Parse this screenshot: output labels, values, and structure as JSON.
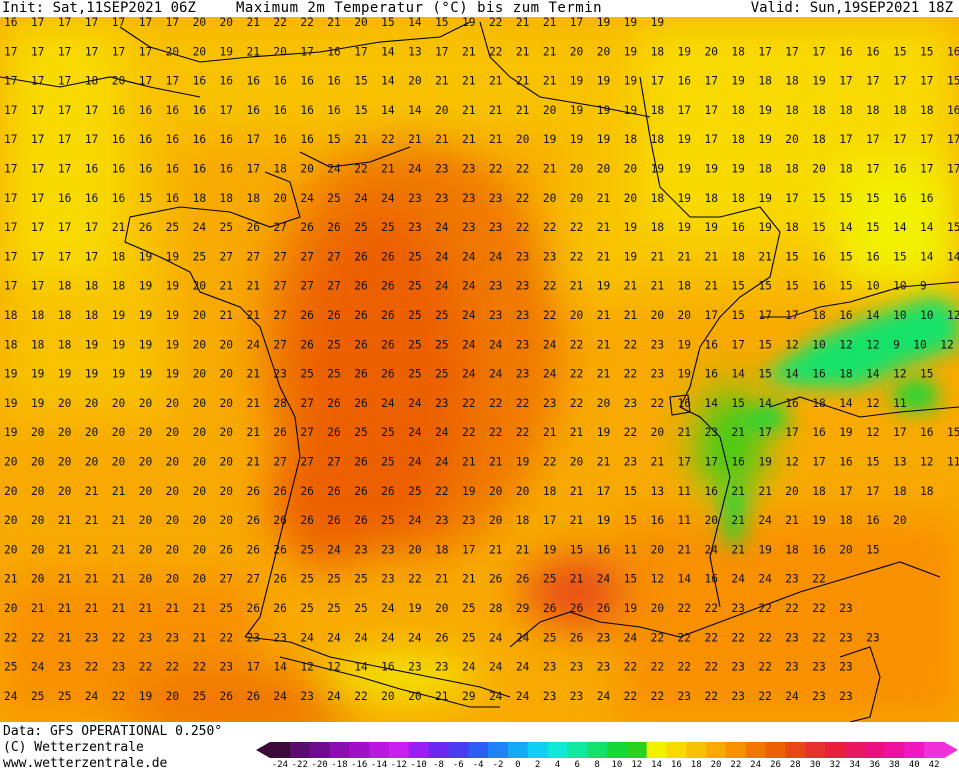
{
  "header": {
    "init": "Init: Sat,11SEP2021 06Z",
    "title": "Maximum 2m Temperatur (°C) bis zum Termin",
    "valid": "Valid: Sun,19SEP2021 18Z"
  },
  "footer": {
    "data_source": "Data: GFS OPERATIONAL 0.250°",
    "copyright": "(C) Wetterzentrale",
    "url": "www.wetterzentrale.de"
  },
  "legend": {
    "ticks": [
      "-24",
      "-22",
      "-20",
      "-18",
      "-16",
      "-14",
      "-12",
      "-10",
      "-8",
      "-6",
      "-4",
      "-2",
      "0",
      "2",
      "4",
      "6",
      "8",
      "10",
      "12",
      "14",
      "16",
      "18",
      "20",
      "22",
      "24",
      "26",
      "28",
      "30",
      "32",
      "34",
      "36",
      "38",
      "40",
      "42"
    ],
    "colors": [
      "#3b0a3b",
      "#5a0b6e",
      "#6e0c8c",
      "#8a0fb0",
      "#a010c8",
      "#b818e0",
      "#c81ff0",
      "#9a1ff5",
      "#6a28f0",
      "#4a3cf0",
      "#2f5cf2",
      "#1f82f5",
      "#13aaf6",
      "#10d0f2",
      "#10e8d8",
      "#10e8a0",
      "#12e26a",
      "#15d83a",
      "#2ad21e",
      "#f2f200",
      "#f8da00",
      "#f8c200",
      "#f8aa00",
      "#f89000",
      "#f07800",
      "#ec6000",
      "#e84818",
      "#e83030",
      "#e8203c",
      "#ea1860",
      "#ee1080",
      "#f010a0",
      "#f218c0",
      "#f030d8"
    ]
  },
  "map": {
    "grid_lines": [
      {
        "y": 1,
        "text": "16  17  17  17  17  17  17  20  20  21  22  22  21  20  15  14  15  19  22  21  21  17  19  19  19"
      },
      {
        "y": 2,
        "text": "17  17  17  17  17  17  20  20  19  21  20  17  16  17  14  13  17  21  22  21  21  20  20  19  18  19  20  18  17  17  17  16  16  15  15  16  15"
      },
      {
        "y": 3,
        "text": "17  17  17  18  20  17  17  16  16  16  16  16  16  15  14  20  21  21  21  21  21  19  19  19  17  16  17  19  18  18  19  17  17  17  17  15  13"
      },
      {
        "y": 4,
        "text": "17  17  17  17  16  16  16  16  17  16  16  16  16  15  14  14  20  21  21  21  20  19  19  19  18  17  17  18  19  18  18  18  18  18  18  16  16"
      },
      {
        "y": 5,
        "text": "17  17  17  17  16  16  16  16  16  17  16  16  15  21  22  21  21  21  21  20  19  19  19  18  18  19  17  18  19  20  18  17  17  17  17  17  16"
      },
      {
        "y": 6,
        "text": "17  17  17  16  16  16  16  16  16  17  18  20  24  22  21  24  23  23  22  22  21  20  20  20  19  19  19  19  18  18  20  18  17  16  17  17  16"
      },
      {
        "y": 7,
        "text": "17  17  16  16  16  15  16  18  18  18  20  24  25  24  24  23  23  23  23  22  20  20  21  20  18  19  18  18  19  17  15  15  15  16  16"
      },
      {
        "y": 8,
        "text": "17  17  17  17  21  26  25  24  25  26  27  26  26  25  25  23  24  23  23  22  22  22  21  19  18  19  19  16  19  18  15  14  15  14  14  15"
      },
      {
        "y": 9,
        "text": "17  17  17  17  18  19  19  25  27  27  27  27  27  26  26  25  24  24  24  23  23  22  21  19  21  21  21  18  21  15  16  15  16  15  14  14  14"
      },
      {
        "y": 10,
        "text": "17  17  18  18  18  19  19  20  21  21  27  27  27  26  26  25  24  24  23  23  22  21  19  21  21  18  21  15  15  15  16  15  10  10  9"
      },
      {
        "y": 11,
        "text": "18  18  18  18  19  19  19  20  21  21  27  26  26  26  26  25  25  24  23  23  22  20  21  21  20  20  17  15  17  17  18  16  14  10  10  12"
      },
      {
        "y": 12,
        "text": "18  18  18  19  19  19  19  20  20  24  27  26  25  26  26  25  25  24  24  23  24  22  21  22  23  19  16  17  15  12  10  12  12  9  10  12"
      },
      {
        "y": 13,
        "text": "19  19  19  19  19  19  19  20  20  21  23  25  25  26  26  25  25  24  24  23  24  22  21  22  23  19  16  14  15  14  16  18  14  12  15"
      },
      {
        "y": 14,
        "text": "19  19  20  20  20  20  20  20  20  21  28  27  26  26  24  24  23  22  22  22  23  22  20  23  22  16  14  15  14  16  18  14  12  11"
      },
      {
        "y": 15,
        "text": "19  20  20  20  20  20  20  20  20  21  26  27  26  25  25  24  24  22  22  22  21  21  19  22  20  21  23  21  17  17  16  19  12  17  16  15  13  12  11"
      },
      {
        "y": 16,
        "text": "20  20  20  20  20  20  20  20  20  21  27  27  27  26  25  24  24  21  21  19  22  20  21  23  21  17  17  16  19  12  17  16  15  13  12  11"
      },
      {
        "y": 17,
        "text": "20  20  20  21  21  20  20  20  20  26  26  26  26  26  26  25  22  19  20  20  18  21  17  15  13  11  16  21  21  20  18  17  17  18  18"
      },
      {
        "y": 18,
        "text": "20  20  21  21  21  20  20  20  20  26  26  26  26  26  25  24  23  23  20  18  17  21  19  15  16  11  20  21  24  21  19  18  16  20"
      },
      {
        "y": 19,
        "text": "20  20  21  21  21  20  20  20  26  26  26  25  24  23  23  20  18  17  21  21  19  15  16  11  20  21  24  21  19  18  16  20  15"
      },
      {
        "y": 20,
        "text": "21  20  21  21  21  20  20  20  27  27  26  25  25  25  23  22  21  21  26  26  25  21  24  15  12  14  16  24  24  23  22"
      },
      {
        "y": 21,
        "text": "20  21  21  21  21  21  21  21  25  26  26  25  25  25  24  19  20  25  28  29  26  26  26  19  20  22  22  23  22  22  22  23"
      },
      {
        "y": 22,
        "text": "22  22  21  23  22  23  23  21  22  23  23  24  24  24  24  24  26  25  24  24  25  26  23  24  22  22  22  22  22  23  22  23  23"
      },
      {
        "y": 23,
        "text": "25  24  23  22  23  22  22  22  23  17  14  12  12  14  16  23  23  24  24  24  23  23  23  22  22  22  22  23  22  23  23  23"
      },
      {
        "y": 24,
        "text": "24  25  25  24  22  19  20  25  26  26  24  23  24  22  20  20  21  29  24  24  23  23  24  22  22  23  22  23  22  24  23  23"
      }
    ]
  }
}
